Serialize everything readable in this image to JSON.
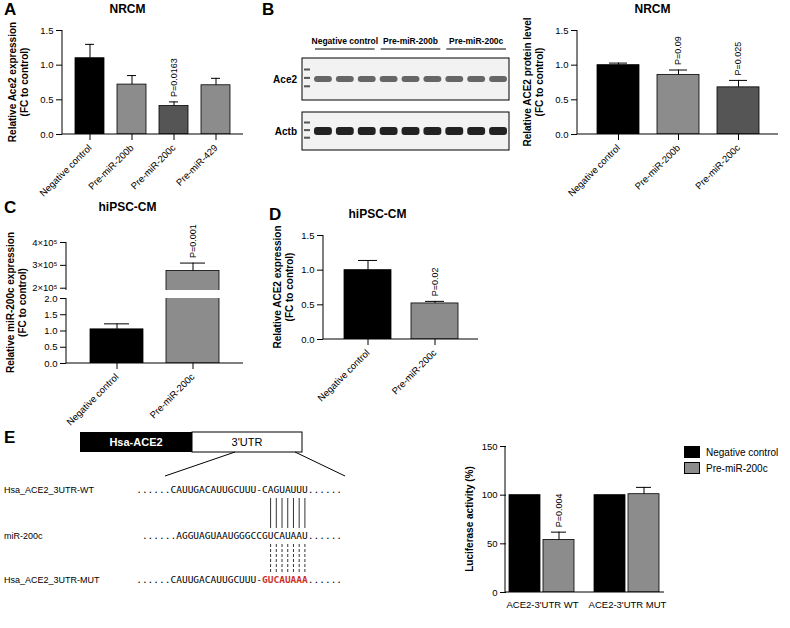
{
  "chart_data": [
    {
      "panel": "A",
      "type": "bar",
      "title": "NRCM",
      "y_label": "Relative Ace2 expression\n(FC to control)",
      "categories": [
        "Negative control",
        "Pre-miR-200b",
        "Pre-miR-200c",
        "Pre-miR-429"
      ],
      "values": [
        1.1,
        0.72,
        0.41,
        0.71
      ],
      "errors": [
        0.2,
        0.13,
        0.06,
        0.1
      ],
      "colors": [
        "#000000",
        "#8c8c8c",
        "#555555",
        "#8c8c8c"
      ],
      "ylim": [
        0,
        1.5
      ],
      "yticks": [
        {
          "value": 0,
          "label": "0.0"
        },
        {
          "value": 0.5,
          "label": "0.5"
        },
        {
          "value": 1,
          "label": "1.0"
        },
        {
          "value": 1.5,
          "label": "1.5"
        }
      ],
      "annotations": [
        {
          "category": "Pre-miR-200c",
          "text": "P=0.0163"
        }
      ]
    },
    {
      "type": "bar",
      "title": "NRCM",
      "y_label": "Relative ACE2 protein level\n(FC to control)",
      "categories": [
        "Negative control",
        "Pre-miR-200b",
        "Pre-miR-200c"
      ],
      "values": [
        1.0,
        0.86,
        0.68
      ],
      "errors": [
        0.03,
        0.07,
        0.1
      ],
      "colors": [
        "#000000",
        "#8c8c8c",
        "#555555"
      ],
      "ylim": [
        0,
        1.5
      ],
      "yticks": [
        {
          "value": 0,
          "label": "0.0"
        },
        {
          "value": 0.5,
          "label": "0.5"
        },
        {
          "value": 1,
          "label": "1.0"
        },
        {
          "value": 1.5,
          "label": "1.5"
        }
      ],
      "annotations": [
        {
          "category": "Pre-miR-200b",
          "text": "P=0.09"
        },
        {
          "category": "Pre-miR-200c",
          "text": "P=0.025"
        }
      ]
    },
    {
      "panel": "C",
      "type": "bar",
      "title": "hiPSC-CM",
      "y_label": "Relative miR-200c expression\n(FC to control)",
      "categories": [
        "Negative control",
        "Pre-miR-200c"
      ],
      "values": [
        1.05,
        275000
      ],
      "errors": [
        0.17,
        35000
      ],
      "colors": [
        "#000000",
        "#8c8c8c"
      ],
      "ylim": [
        [
          0,
          2
        ],
        [
          190000,
          400000
        ]
      ],
      "yticks": [
        [
          {
            "value": 0,
            "label": "0.0"
          },
          {
            "value": 0.5,
            "label": "0.5"
          },
          {
            "value": 1,
            "label": "1.0"
          },
          {
            "value": 1.5,
            "label": "1.5"
          },
          {
            "value": 2,
            "label": "2.0"
          }
        ],
        [
          {
            "value": 200000,
            "label": "2×10⁵"
          },
          {
            "value": 300000,
            "label": "3×10⁵"
          },
          {
            "value": 400000,
            "label": "4×10⁵"
          }
        ]
      ],
      "annotations": [
        {
          "category": "Pre-miR-200c",
          "text": "P=0.001"
        }
      ]
    },
    {
      "panel": "D",
      "type": "bar",
      "title": "hiPSC-CM",
      "y_label": "Relative ACE2 expression\n(FC to control)",
      "categories": [
        "Negative control",
        "Pre-miR-200c"
      ],
      "values": [
        1.0,
        0.52
      ],
      "errors": [
        0.14,
        0.03
      ],
      "colors": [
        "#000000",
        "#8c8c8c"
      ],
      "ylim": [
        0,
        1.5
      ],
      "yticks": [
        {
          "value": 0,
          "label": "0.0"
        },
        {
          "value": 0.5,
          "label": "0.5"
        },
        {
          "value": 1,
          "label": "1.0"
        },
        {
          "value": 1.5,
          "label": "1.5"
        }
      ],
      "annotations": [
        {
          "category": "Pre-miR-200c",
          "text": "P=0.02"
        }
      ]
    },
    {
      "type": "bar",
      "y_label": "Luciferase activity (%)",
      "categories": [
        "ACE2-3'UTR WT",
        "ACE2-3'UTR MUT"
      ],
      "series": [
        {
          "name": "Negative control",
          "color": "#000000",
          "values": [
            100,
            100
          ],
          "errors": [
            0,
            0
          ]
        },
        {
          "name": "Pre-miR-200c",
          "color": "#8c8c8c",
          "values": [
            54,
            101
          ],
          "errors": [
            8,
            7
          ]
        }
      ],
      "ylim": [
        0,
        150
      ],
      "yticks": [
        0,
        50,
        100,
        150
      ],
      "legend": "top-right",
      "annotations": [
        {
          "category": "ACE2-3'UTR WT",
          "series": "Pre-miR-200c",
          "text": "P=0.004"
        }
      ]
    }
  ],
  "blot": {
    "panel": "B",
    "lanes": [
      {
        "label": "Negative control",
        "count": 3
      },
      {
        "label": "Pre-miR-200b",
        "count": 3
      },
      {
        "label": "Pre-miR-200c",
        "count": 3
      }
    ],
    "rows": [
      "Ace2",
      "Actb"
    ]
  },
  "diagram": {
    "panel": "E",
    "gene": "Hsa-ACE2",
    "utr": "3'UTR",
    "sequences": [
      {
        "label": "Hsa_ACE2_3UTR-WT",
        "before": "......CAUUGACAUUGCUUU-",
        "site": "CAGUAUUU",
        "after": "......"
      },
      {
        "label": "miR-200c",
        "before": "......AGGUAGUAAUGGGCC",
        "site": "GUCAUAAU",
        "after": "......"
      },
      {
        "label": "Hsa_ACE2_3UTR-MUT",
        "before": "......CAUUGACAUUGCUUU-",
        "site": "GUCAUAAA",
        "after": "......",
        "color": "#d0312d"
      }
    ]
  }
}
